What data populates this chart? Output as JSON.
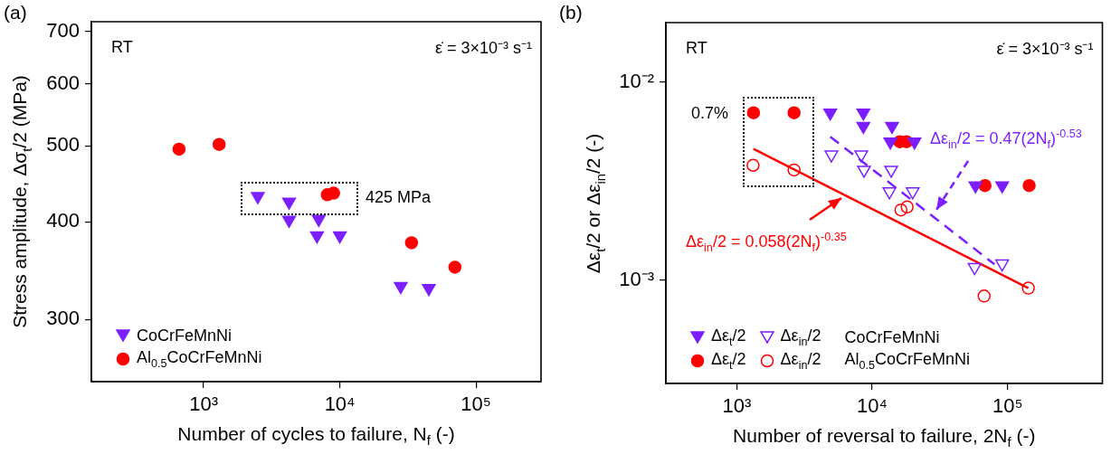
{
  "chart_data": [
    {
      "type": "scatter",
      "title": "(a)",
      "xlabel": "Number of cycles to failure, N$_{f}$ (-)",
      "ylabel": "Stress amplitude, Δσ$_{t}$/2 (MPa)",
      "log": "xy",
      "xlim": [
        150,
        300000
      ],
      "ylim": [
        250,
        720
      ],
      "xticks": [
        {
          "value": 1000,
          "label": "10³"
        },
        {
          "value": 10000,
          "label": "10⁴"
        },
        {
          "value": 100000,
          "label": "10⁵"
        }
      ],
      "yticks": [
        300,
        400,
        500,
        600,
        700
      ],
      "legend": "bottom left",
      "annotations": [
        "RT",
        "ε̇ = 3×10⁻³ s⁻¹",
        "425 MPa"
      ],
      "series": [
        {
          "name": "CoCrFeMnNi",
          "color": "#7b1fff",
          "marker": "triangle",
          "x": [
            2500,
            4240,
            4240,
            7000,
            6800,
            10000,
            28000,
            45000
          ],
          "values": [
            431,
            424,
            402,
            403,
            384,
            384,
            331,
            329
          ]
        },
        {
          "name": "Al$_{0.5}$CoCrFeMnNi",
          "color": "#ff0000",
          "marker": "circle",
          "x": [
            660,
            1300,
            8100,
            9000,
            33600,
            70000
          ],
          "values": [
            495,
            502,
            433,
            435,
            376,
            350
          ]
        }
      ]
    },
    {
      "type": "scatter",
      "title": "(b)",
      "xlabel": "Number of reversal to failure, 2N$_{f}$ (-)",
      "ylabel": "Δε$_{t}$/2 or Δε$_{in}$/2 (-)",
      "log": "xy",
      "xlim": [
        300,
        500000
      ],
      "ylim": [
        0.0003,
        0.02
      ],
      "xticks": [
        {
          "value": 1000,
          "label": "10³"
        },
        {
          "value": 10000,
          "label": "10⁴"
        },
        {
          "value": 100000,
          "label": "10⁵"
        }
      ],
      "yticks": [
        {
          "value": 0.001,
          "label": "10⁻³"
        },
        {
          "value": 0.01,
          "label": "10⁻²"
        }
      ],
      "legend": "bottom left",
      "annotations": [
        "RT",
        "ε̇ = 3×10⁻³ s⁻¹",
        "0.7%",
        "Δε$_{in}$/2 = 0.47(2N$_{f}$)$^{-0.53}$",
        "Δε$_{in}$/2 = 0.058(2N$_{f}$)$^{-0.35}$",
        "CoCrFeMnNi",
        "Al$_{0.5}$CoCrFeMnNi"
      ],
      "series": [
        {
          "name": "Δε$_{t}$/2",
          "color": "#7b1fff",
          "marker": "triangle",
          "x": [
            4900,
            8600,
            8600,
            14000,
            13600,
            20500,
            57800,
            91000
          ],
          "values": [
            0.007,
            0.007,
            0.006,
            0.006,
            0.005,
            0.005,
            0.003,
            0.003
          ]
        },
        {
          "name": "Δε$_{in}$/2",
          "color": "#7b1fff",
          "marker": "triangle",
          "x": [
            5000,
            8300,
            8700,
            13800,
            13400,
            19900,
            57000,
            91000
          ],
          "values": [
            0.0043,
            0.0043,
            0.0036,
            0.0036,
            0.0028,
            0.0028,
            0.00116,
            0.00121
          ]
        },
        {
          "name": "Δε$_{t}$/2",
          "color": "#ff0000",
          "marker": "circle",
          "x": [
            1330,
            2650,
            16000,
            17900,
            68000,
            144000
          ],
          "values": [
            0.007,
            0.007,
            0.005,
            0.005,
            0.003,
            0.003
          ]
        },
        {
          "name": "Δε$_{in}$/2",
          "color": "#ff0000",
          "marker": "circle",
          "x": [
            1320,
            2650,
            16300,
            18100,
            67000,
            142000
          ],
          "values": [
            0.0038,
            0.0036,
            0.00226,
            0.00234,
            0.00083,
            0.00091
          ]
        },
        {
          "type": "line",
          "color": "#ff0000",
          "marker": "none",
          "x": [
            1330,
            142000
          ],
          "values": [
            0.0046,
            0.00091
          ]
        },
        {
          "type": "line",
          "color": "#7b1fff",
          "marker": "none",
          "line_style": "dashed",
          "x": [
            4900,
            80000
          ],
          "values": [
            0.0053,
            0.0012
          ]
        }
      ]
    }
  ]
}
